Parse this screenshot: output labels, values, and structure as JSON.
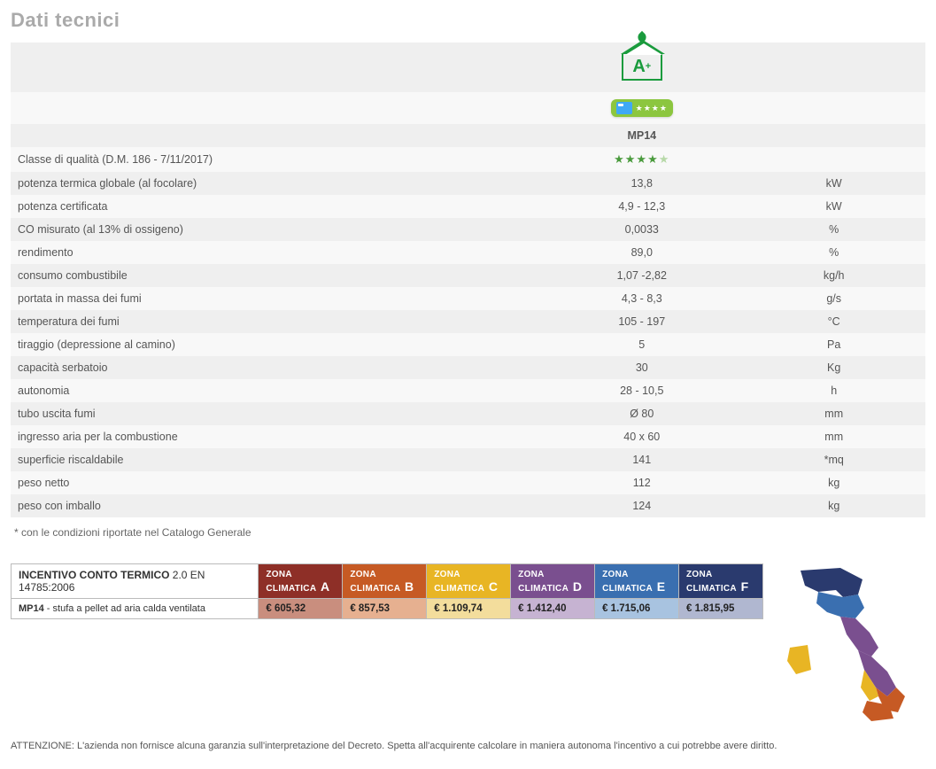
{
  "title": "Dati tecnici",
  "model": "MP14",
  "energy_class": "A+",
  "quality_stars": {
    "filled": 4,
    "total": 5
  },
  "spec_rows": [
    {
      "label": "Classe di qualità (D.M. 186 - 7/11/2017)",
      "value": "",
      "unit": "",
      "is_stars": true
    },
    {
      "label": "potenza termica globale (al focolare)",
      "value": "13,8",
      "unit": "kW"
    },
    {
      "label": "potenza certificata",
      "value": "4,9 - 12,3",
      "unit": "kW"
    },
    {
      "label": "CO misurato (al 13% di ossigeno)",
      "value": "0,0033",
      "unit": "%"
    },
    {
      "label": "rendimento",
      "value": "89,0",
      "unit": "%"
    },
    {
      "label": "consumo combustibile",
      "value": "1,07 -2,82",
      "unit": "kg/h"
    },
    {
      "label": "portata in massa dei fumi",
      "value": "4,3 - 8,3",
      "unit": "g/s"
    },
    {
      "label": "temperatura dei fumi",
      "value": "105 - 197",
      "unit": "°C"
    },
    {
      "label": "tiraggio (depressione al camino)",
      "value": "5",
      "unit": "Pa"
    },
    {
      "label": "capacità serbatoio",
      "value": "30",
      "unit": "Kg"
    },
    {
      "label": "autonomia",
      "value": "28 - 10,5",
      "unit": "h"
    },
    {
      "label": "tubo uscita fumi",
      "value": "Ø 80",
      "unit": "mm"
    },
    {
      "label": "ingresso aria per la combustione",
      "value": "40 x 60",
      "unit": "mm"
    },
    {
      "label": "superficie riscaldabile",
      "value": "141",
      "unit": "*mq"
    },
    {
      "label": "peso netto",
      "value": "112",
      "unit": "kg"
    },
    {
      "label": "peso con imballo",
      "value": "124",
      "unit": "kg"
    }
  ],
  "footnote": "* con le condizioni riportate nel Catalogo Generale",
  "incentive": {
    "title_bold": "INCENTIVO CONTO TERMICO",
    "title_rest": " 2.0 EN 14785:2006",
    "row_model": "MP14",
    "row_desc": " - stufa a pellet ad aria calda ventilata",
    "zones": [
      {
        "letter": "A",
        "label": "ZONA CLIMATICA",
        "header_bg": "#8e2f27",
        "cell_bg": "#c98e7e",
        "price": "€ 605,32"
      },
      {
        "letter": "B",
        "label": "ZONA CLIMATICA",
        "header_bg": "#c65a24",
        "cell_bg": "#e6b090",
        "price": "€ 857,53"
      },
      {
        "letter": "C",
        "label": "ZONA CLIMATICA",
        "header_bg": "#e8b524",
        "cell_bg": "#f3dd9c",
        "price": "€ 1.109,74"
      },
      {
        "letter": "D",
        "label": "ZONA CLIMATICA",
        "header_bg": "#7a4f8f",
        "cell_bg": "#c6b3d2",
        "price": "€ 1.412,40"
      },
      {
        "letter": "E",
        "label": "ZONA CLIMATICA",
        "header_bg": "#3a6fb0",
        "cell_bg": "#a8c3e0",
        "price": "€ 1.715,06"
      },
      {
        "letter": "F",
        "label": "ZONA CLIMATICA",
        "header_bg": "#2a3a6e",
        "cell_bg": "#b0b7d0",
        "price": "€ 1.815,95"
      }
    ]
  },
  "map_colors": {
    "north": "#2a3a6e",
    "north_center": "#3a6fb0",
    "center": "#7a4f8f",
    "south": "#c65a24",
    "islands": "#e8b524",
    "deep_south": "#8e2f27"
  },
  "disclaimer": "ATTENZIONE:  L'azienda non fornisce alcuna garanzia sull'interpretazione del Decreto. Spetta all'acquirente calcolare in maniera autonoma l'incentivo a cui potrebbe avere diritto."
}
